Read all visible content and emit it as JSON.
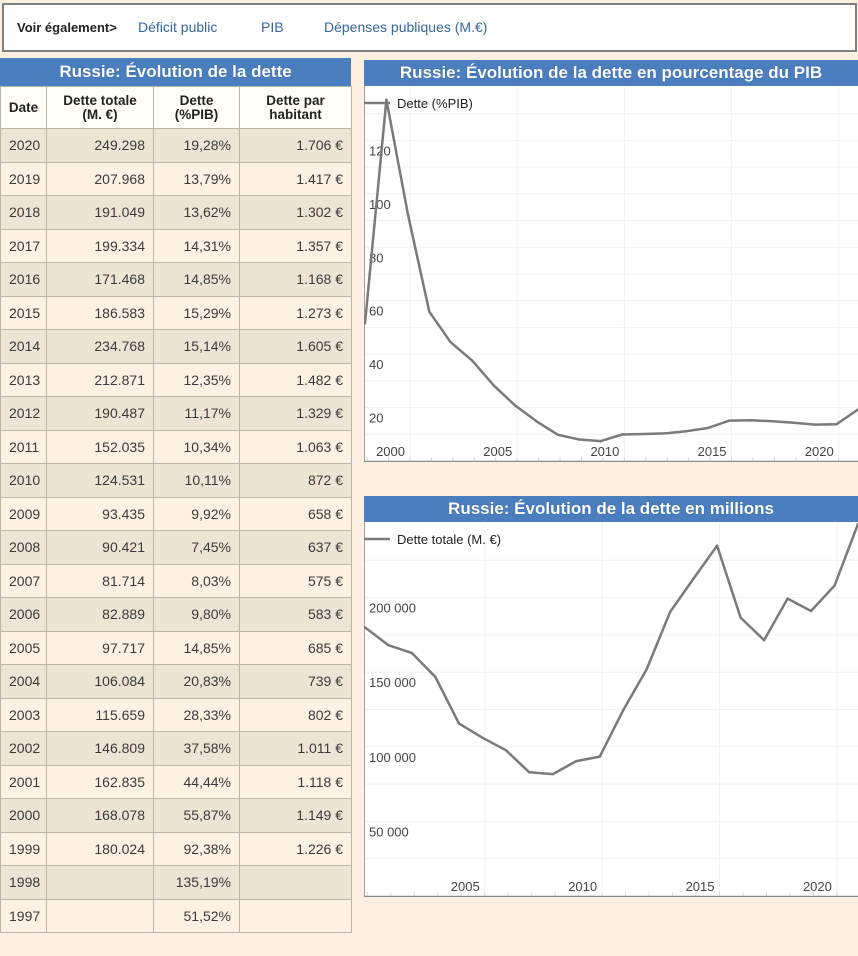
{
  "nav": {
    "label": "Voir également>",
    "links": [
      "Déficit public",
      "PIB",
      "Dépenses publiques (M.€)"
    ]
  },
  "table": {
    "title": "Russie: Évolution de la dette",
    "headers": [
      {
        "line1": "Date",
        "line2": ""
      },
      {
        "line1": "Dette totale",
        "line2": "(M. €)"
      },
      {
        "line1": "Dette",
        "line2": "(%PIB)"
      },
      {
        "line1": "Dette par",
        "line2": "habitant"
      }
    ],
    "rows": [
      {
        "date": "2020",
        "total": "249.298",
        "pct": "19,28%",
        "per_capita": "1.706 €"
      },
      {
        "date": "2019",
        "total": "207.968",
        "pct": "13,79%",
        "per_capita": "1.417 €"
      },
      {
        "date": "2018",
        "total": "191.049",
        "pct": "13,62%",
        "per_capita": "1.302 €"
      },
      {
        "date": "2017",
        "total": "199.334",
        "pct": "14,31%",
        "per_capita": "1.357 €"
      },
      {
        "date": "2016",
        "total": "171.468",
        "pct": "14,85%",
        "per_capita": "1.168 €"
      },
      {
        "date": "2015",
        "total": "186.583",
        "pct": "15,29%",
        "per_capita": "1.273 €"
      },
      {
        "date": "2014",
        "total": "234.768",
        "pct": "15,14%",
        "per_capita": "1.605 €"
      },
      {
        "date": "2013",
        "total": "212.871",
        "pct": "12,35%",
        "per_capita": "1.482 €"
      },
      {
        "date": "2012",
        "total": "190.487",
        "pct": "11,17%",
        "per_capita": "1.329 €"
      },
      {
        "date": "2011",
        "total": "152.035",
        "pct": "10,34%",
        "per_capita": "1.063 €"
      },
      {
        "date": "2010",
        "total": "124.531",
        "pct": "10,11%",
        "per_capita": "872 €"
      },
      {
        "date": "2009",
        "total": "93.435",
        "pct": "9,92%",
        "per_capita": "658 €"
      },
      {
        "date": "2008",
        "total": "90.421",
        "pct": "7,45%",
        "per_capita": "637 €"
      },
      {
        "date": "2007",
        "total": "81.714",
        "pct": "8,03%",
        "per_capita": "575 €"
      },
      {
        "date": "2006",
        "total": "82.889",
        "pct": "9,80%",
        "per_capita": "583 €"
      },
      {
        "date": "2005",
        "total": "97.717",
        "pct": "14,85%",
        "per_capita": "685 €"
      },
      {
        "date": "2004",
        "total": "106.084",
        "pct": "20,83%",
        "per_capita": "739 €"
      },
      {
        "date": "2003",
        "total": "115.659",
        "pct": "28,33%",
        "per_capita": "802 €"
      },
      {
        "date": "2002",
        "total": "146.809",
        "pct": "37,58%",
        "per_capita": "1.011 €"
      },
      {
        "date": "2001",
        "total": "162.835",
        "pct": "44,44%",
        "per_capita": "1.118 €"
      },
      {
        "date": "2000",
        "total": "168.078",
        "pct": "55,87%",
        "per_capita": "1.149 €"
      },
      {
        "date": "1999",
        "total": "180.024",
        "pct": "92,38%",
        "per_capita": "1.226 €"
      },
      {
        "date": "1998",
        "total": "",
        "pct": "135,19%",
        "per_capita": ""
      },
      {
        "date": "1997",
        "total": "",
        "pct": "51,52%",
        "per_capita": ""
      }
    ]
  },
  "chart_data": [
    {
      "type": "line",
      "title": "Russie: Évolution de la dette en pourcentage du PIB",
      "xlabel": "",
      "ylabel": "",
      "legend": "top-left",
      "grid": true,
      "line_color": "#7A7A7A",
      "series": [
        {
          "name": "Dette (%PIB)",
          "x": [
            1997,
            1998,
            1999,
            2000,
            2001,
            2002,
            2003,
            2004,
            2005,
            2006,
            2007,
            2008,
            2009,
            2010,
            2011,
            2012,
            2013,
            2014,
            2015,
            2016,
            2017,
            2018,
            2019,
            2020
          ],
          "values": [
            51.52,
            135.19,
            92.38,
            55.87,
            44.44,
            37.58,
            28.33,
            20.83,
            14.85,
            9.8,
            8.03,
            7.45,
            9.92,
            10.11,
            10.34,
            11.17,
            12.35,
            15.14,
            15.29,
            14.85,
            14.31,
            13.62,
            13.79,
            19.28
          ]
        }
      ],
      "xlim": [
        1997.9,
        2020.9
      ],
      "ylim": [
        0,
        140
      ],
      "xticks": [
        2000,
        2005,
        2010,
        2015,
        2020
      ],
      "xtick_labels": [
        "2000",
        "2005",
        "2010",
        "2015",
        "2020"
      ],
      "yticks": [
        20,
        40,
        60,
        80,
        100,
        120
      ],
      "ytick_labels": [
        "20",
        "40",
        "60",
        "80",
        "100",
        "120"
      ],
      "ygrid_step": 10
    },
    {
      "type": "line",
      "title": "Russie: Évolution de la dette en millions",
      "xlabel": "",
      "ylabel": "",
      "legend": "top-left",
      "grid": true,
      "line_color": "#7A7A7A",
      "series": [
        {
          "name": "Dette totale (M. €)",
          "x": [
            1999,
            2000,
            2001,
            2002,
            2003,
            2004,
            2005,
            2006,
            2007,
            2008,
            2009,
            2010,
            2011,
            2012,
            2013,
            2014,
            2015,
            2016,
            2017,
            2018,
            2019,
            2020
          ],
          "values": [
            180024,
            168078,
            162835,
            146809,
            115659,
            106084,
            97717,
            82889,
            81714,
            90421,
            93435,
            124531,
            152035,
            190487,
            212871,
            234768,
            186583,
            171468,
            199334,
            191049,
            207968,
            249298
          ]
        }
      ],
      "xlim": [
        1999.9,
        2020.9
      ],
      "ylim": [
        0,
        250000
      ],
      "xticks": [
        2005,
        2010,
        2015,
        2020
      ],
      "xtick_labels": [
        "2005",
        "2010",
        "2015",
        "2020"
      ],
      "yticks": [
        50000,
        100000,
        150000,
        200000
      ],
      "ytick_labels": [
        "50 000",
        "100 000",
        "150 000",
        "200 000"
      ],
      "ygrid_step": 25000
    }
  ]
}
